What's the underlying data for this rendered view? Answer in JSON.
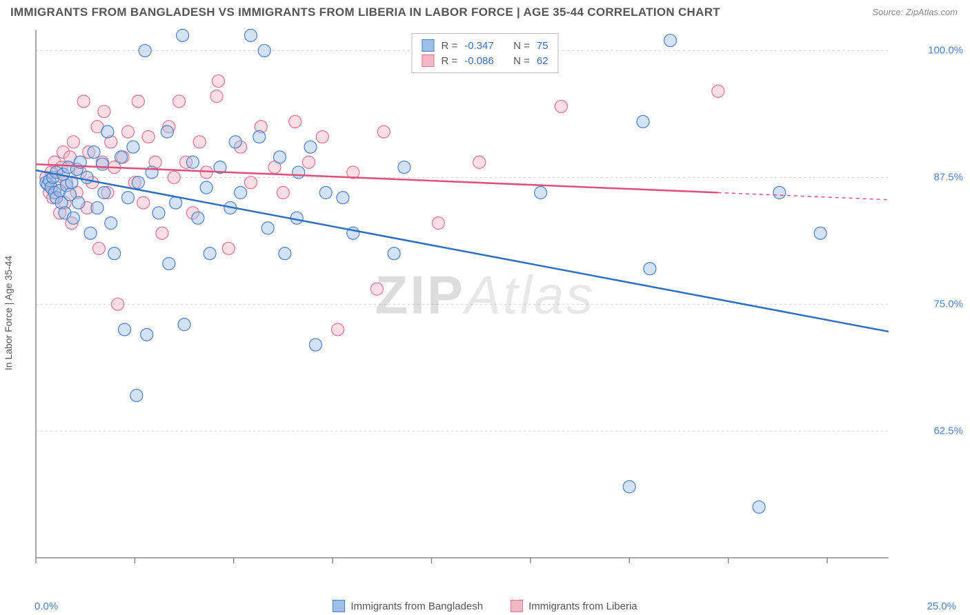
{
  "title": "IMMIGRANTS FROM BANGLADESH VS IMMIGRANTS FROM LIBERIA IN LABOR FORCE | AGE 35-44 CORRELATION CHART",
  "source": "Source: ZipAtlas.com",
  "y_axis_label": "In Labor Force | Age 35-44",
  "watermark_a": "ZIP",
  "watermark_b": "Atlas",
  "chart": {
    "type": "scatter",
    "background_color": "#ffffff",
    "plot_border_color": "#888888",
    "grid_color": "#d0d0d0",
    "grid_dash": "3,4",
    "xlim": [
      0,
      25
    ],
    "ylim": [
      50,
      102
    ],
    "x_tick_positions": [
      0,
      2.9,
      5.8,
      8.7,
      11.6,
      14.5,
      17.4,
      20.3,
      23.2
    ],
    "y_ticks": [
      {
        "v": 62.5,
        "label": "62.5%"
      },
      {
        "v": 75.0,
        "label": "75.0%"
      },
      {
        "v": 87.5,
        "label": "87.5%"
      },
      {
        "v": 100.0,
        "label": "100.0%"
      }
    ],
    "x_min_label": "0.0%",
    "x_max_label": "25.0%",
    "marker_radius": 9,
    "marker_opacity": 0.45,
    "marker_stroke_width": 1.2,
    "trend_line_width": 2.5,
    "series": [
      {
        "name": "Immigrants from Bangladesh",
        "fill": "#9dbfe8",
        "stroke": "#4a7fc9",
        "trend_color": "#2f6fc0",
        "trend_start": {
          "x": 0,
          "y": 88.2
        },
        "trend_end": {
          "x": 25,
          "y": 72.3
        },
        "R": "-0.347",
        "N": "75",
        "points": [
          [
            0.3,
            87.0
          ],
          [
            0.35,
            86.8
          ],
          [
            0.4,
            87.2
          ],
          [
            0.45,
            86.5
          ],
          [
            0.5,
            87.5
          ],
          [
            0.55,
            86.0
          ],
          [
            0.6,
            85.5
          ],
          [
            0.6,
            88.0
          ],
          [
            0.7,
            86.2
          ],
          [
            0.75,
            85.0
          ],
          [
            0.8,
            87.8
          ],
          [
            0.85,
            84.0
          ],
          [
            0.9,
            86.7
          ],
          [
            0.95,
            88.5
          ],
          [
            1.0,
            85.8
          ],
          [
            1.05,
            87.0
          ],
          [
            1.1,
            83.5
          ],
          [
            1.2,
            88.3
          ],
          [
            1.25,
            85.0
          ],
          [
            1.3,
            89.0
          ],
          [
            1.5,
            87.5
          ],
          [
            1.6,
            82.0
          ],
          [
            1.7,
            90.0
          ],
          [
            1.8,
            84.5
          ],
          [
            1.95,
            88.8
          ],
          [
            2.0,
            86.0
          ],
          [
            2.1,
            92.0
          ],
          [
            2.2,
            83.0
          ],
          [
            2.3,
            80.0
          ],
          [
            2.5,
            89.5
          ],
          [
            2.6,
            72.5
          ],
          [
            2.7,
            85.5
          ],
          [
            2.85,
            90.5
          ],
          [
            2.95,
            66.0
          ],
          [
            3.0,
            87.0
          ],
          [
            3.2,
            100.0
          ],
          [
            3.25,
            72.0
          ],
          [
            3.4,
            88.0
          ],
          [
            3.6,
            84.0
          ],
          [
            3.85,
            92.0
          ],
          [
            3.9,
            79.0
          ],
          [
            4.1,
            85.0
          ],
          [
            4.3,
            101.5
          ],
          [
            4.35,
            73.0
          ],
          [
            4.6,
            89.0
          ],
          [
            4.75,
            83.5
          ],
          [
            5.0,
            86.5
          ],
          [
            5.1,
            80.0
          ],
          [
            5.4,
            88.5
          ],
          [
            5.7,
            84.5
          ],
          [
            5.85,
            91.0
          ],
          [
            6.0,
            86.0
          ],
          [
            6.3,
            101.5
          ],
          [
            6.55,
            91.5
          ],
          [
            6.7,
            100.0
          ],
          [
            6.8,
            82.5
          ],
          [
            7.15,
            89.5
          ],
          [
            7.3,
            80.0
          ],
          [
            7.65,
            83.5
          ],
          [
            7.7,
            88.0
          ],
          [
            8.05,
            90.5
          ],
          [
            8.2,
            71.0
          ],
          [
            8.5,
            86.0
          ],
          [
            9.0,
            85.5
          ],
          [
            9.3,
            82.0
          ],
          [
            10.5,
            80.0
          ],
          [
            10.8,
            88.5
          ],
          [
            14.8,
            86.0
          ],
          [
            17.4,
            57.0
          ],
          [
            17.8,
            93.0
          ],
          [
            18.0,
            78.5
          ],
          [
            18.6,
            101.0
          ],
          [
            21.2,
            55.0
          ],
          [
            21.8,
            86.0
          ],
          [
            23.0,
            82.0
          ]
        ]
      },
      {
        "name": "Immigrants from Liberia",
        "fill": "#f2b8c6",
        "stroke": "#e36f8f",
        "trend_color": "#e04f7a",
        "trend_start": {
          "x": 0,
          "y": 88.8
        },
        "trend_end": {
          "x": 20,
          "y": 86.0
        },
        "trend_extrap_end": {
          "x": 25,
          "y": 85.3
        },
        "R": "-0.086",
        "N": "62",
        "points": [
          [
            0.3,
            87.5
          ],
          [
            0.4,
            86.0
          ],
          [
            0.45,
            88.0
          ],
          [
            0.5,
            85.5
          ],
          [
            0.55,
            89.0
          ],
          [
            0.6,
            86.5
          ],
          [
            0.7,
            84.0
          ],
          [
            0.75,
            88.5
          ],
          [
            0.8,
            90.0
          ],
          [
            0.85,
            85.0
          ],
          [
            0.9,
            87.0
          ],
          [
            1.0,
            89.5
          ],
          [
            1.05,
            83.0
          ],
          [
            1.1,
            91.0
          ],
          [
            1.2,
            86.0
          ],
          [
            1.3,
            88.0
          ],
          [
            1.4,
            95.0
          ],
          [
            1.5,
            84.5
          ],
          [
            1.55,
            90.0
          ],
          [
            1.65,
            87.0
          ],
          [
            1.8,
            92.5
          ],
          [
            1.85,
            80.5
          ],
          [
            1.95,
            89.0
          ],
          [
            2.0,
            94.0
          ],
          [
            2.1,
            86.0
          ],
          [
            2.2,
            91.0
          ],
          [
            2.3,
            88.5
          ],
          [
            2.4,
            75.0
          ],
          [
            2.55,
            89.5
          ],
          [
            2.7,
            92.0
          ],
          [
            2.9,
            87.0
          ],
          [
            3.0,
            95.0
          ],
          [
            3.15,
            85.0
          ],
          [
            3.3,
            91.5
          ],
          [
            3.5,
            89.0
          ],
          [
            3.7,
            82.0
          ],
          [
            3.9,
            92.5
          ],
          [
            4.05,
            87.5
          ],
          [
            4.2,
            95.0
          ],
          [
            4.4,
            89.0
          ],
          [
            4.6,
            84.0
          ],
          [
            4.8,
            91.0
          ],
          [
            5.0,
            88.0
          ],
          [
            5.3,
            95.5
          ],
          [
            5.35,
            97.0
          ],
          [
            5.65,
            80.5
          ],
          [
            6.0,
            90.5
          ],
          [
            6.3,
            87.0
          ],
          [
            6.6,
            92.5
          ],
          [
            7.0,
            88.5
          ],
          [
            7.25,
            86.0
          ],
          [
            7.6,
            93.0
          ],
          [
            8.0,
            89.0
          ],
          [
            8.4,
            91.5
          ],
          [
            8.85,
            72.5
          ],
          [
            9.3,
            88.0
          ],
          [
            10.0,
            76.5
          ],
          [
            10.2,
            92.0
          ],
          [
            11.8,
            83.0
          ],
          [
            13.0,
            89.0
          ],
          [
            15.4,
            94.5
          ],
          [
            20.0,
            96.0
          ]
        ]
      }
    ],
    "stats_labels": {
      "R": "R =",
      "N": "N ="
    },
    "bottom_legend": [
      {
        "label": "Immigrants from Bangladesh",
        "fill": "#9dbfe8",
        "stroke": "#4a7fc9"
      },
      {
        "label": "Immigrants from Liberia",
        "fill": "#f2b8c6",
        "stroke": "#e36f8f"
      }
    ]
  }
}
